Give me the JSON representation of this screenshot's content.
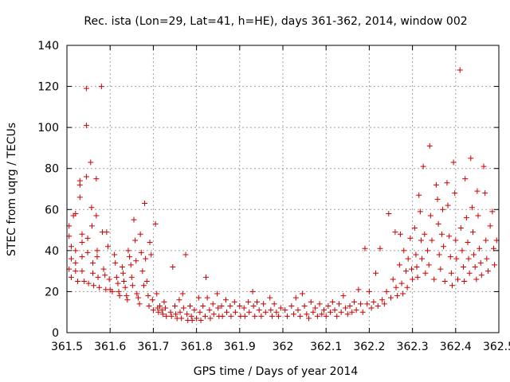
{
  "chart_data": {
    "type": "scatter",
    "title": "Rec. ista (Lon=29, Lat=41, h=HE), days 361-362, 2014, window 002",
    "xlabel": "GPS time / Days of year 2014",
    "ylabel": "STEC from uqrg / TECUs",
    "xlim": [
      361.5,
      362.5
    ],
    "ylim": [
      0,
      140
    ],
    "x_ticks": [
      {
        "value": 361.5,
        "label": "361.5"
      },
      {
        "value": 361.6,
        "label": "361.6"
      },
      {
        "value": 361.7,
        "label": "361.7"
      },
      {
        "value": 361.8,
        "label": "361.8"
      },
      {
        "value": 361.9,
        "label": "361.9"
      },
      {
        "value": 362.0,
        "label": "362"
      },
      {
        "value": 362.1,
        "label": "362.1"
      },
      {
        "value": 362.2,
        "label": "362.2"
      },
      {
        "value": 362.3,
        "label": "362.3"
      },
      {
        "value": 362.4,
        "label": "362.4"
      },
      {
        "value": 362.5,
        "label": "362.5"
      }
    ],
    "y_ticks": [
      {
        "value": 0,
        "label": "0"
      },
      {
        "value": 20,
        "label": "20"
      },
      {
        "value": 40,
        "label": "40"
      },
      {
        "value": 60,
        "label": "60"
      },
      {
        "value": 80,
        "label": "80"
      },
      {
        "value": 100,
        "label": "100"
      },
      {
        "value": 120,
        "label": "120"
      },
      {
        "value": 140,
        "label": "140"
      }
    ],
    "grid": true,
    "marker": "plus",
    "marker_color": "#cc0000",
    "series": [
      {
        "points": [
          [
            361.505,
            52
          ],
          [
            361.505,
            47
          ],
          [
            361.51,
            42
          ],
          [
            361.51,
            36
          ],
          [
            361.505,
            31
          ],
          [
            361.51,
            27
          ],
          [
            361.515,
            57
          ],
          [
            361.52,
            58
          ],
          [
            361.52,
            40
          ],
          [
            361.52,
            34
          ],
          [
            361.52,
            30
          ],
          [
            361.525,
            25
          ],
          [
            361.53,
            74
          ],
          [
            361.53,
            72
          ],
          [
            361.53,
            66
          ],
          [
            361.535,
            48
          ],
          [
            361.535,
            44
          ],
          [
            361.535,
            37
          ],
          [
            361.535,
            30
          ],
          [
            361.54,
            25
          ],
          [
            361.545,
            119
          ],
          [
            361.545,
            101
          ],
          [
            361.545,
            76
          ],
          [
            361.548,
            46
          ],
          [
            361.548,
            39
          ],
          [
            361.55,
            24
          ],
          [
            361.555,
            83
          ],
          [
            361.557,
            61
          ],
          [
            361.558,
            52
          ],
          [
            361.56,
            34
          ],
          [
            361.56,
            29
          ],
          [
            361.562,
            23
          ],
          [
            361.568,
            75
          ],
          [
            361.568,
            57
          ],
          [
            361.57,
            40
          ],
          [
            361.57,
            37
          ],
          [
            361.572,
            27
          ],
          [
            361.575,
            22
          ],
          [
            361.58,
            120
          ],
          [
            361.582,
            49
          ],
          [
            361.585,
            31
          ],
          [
            361.588,
            28
          ],
          [
            361.59,
            21
          ],
          [
            361.592,
            49
          ],
          [
            361.595,
            42
          ],
          [
            361.598,
            26
          ],
          [
            361.6,
            21
          ],
          [
            361.605,
            20
          ],
          [
            361.61,
            38
          ],
          [
            361.612,
            34
          ],
          [
            361.615,
            27
          ],
          [
            361.618,
            24
          ],
          [
            361.62,
            20
          ],
          [
            361.622,
            18
          ],
          [
            361.628,
            32
          ],
          [
            361.63,
            29
          ],
          [
            361.632,
            25
          ],
          [
            361.635,
            22
          ],
          [
            361.638,
            18
          ],
          [
            361.64,
            16
          ],
          [
            361.642,
            40
          ],
          [
            361.645,
            37
          ],
          [
            361.648,
            33
          ],
          [
            361.65,
            27
          ],
          [
            361.652,
            23
          ],
          [
            361.655,
            55
          ],
          [
            361.658,
            45
          ],
          [
            361.66,
            35
          ],
          [
            361.662,
            19
          ],
          [
            361.665,
            17
          ],
          [
            361.668,
            14
          ],
          [
            361.67,
            48
          ],
          [
            361.672,
            39
          ],
          [
            361.675,
            30
          ],
          [
            361.678,
            23
          ],
          [
            361.68,
            63
          ],
          [
            361.682,
            36
          ],
          [
            361.685,
            25
          ],
          [
            361.688,
            18
          ],
          [
            361.69,
            13
          ],
          [
            361.692,
            44
          ],
          [
            361.695,
            38
          ],
          [
            361.698,
            16
          ],
          [
            361.7,
            11
          ],
          [
            361.705,
            53
          ],
          [
            361.708,
            19
          ],
          [
            361.71,
            12
          ],
          [
            361.712,
            10
          ],
          [
            361.715,
            13
          ],
          [
            361.72,
            11
          ],
          [
            361.722,
            9
          ],
          [
            361.725,
            15
          ],
          [
            361.728,
            12
          ],
          [
            361.73,
            8
          ],
          [
            361.74,
            10
          ],
          [
            361.742,
            8
          ],
          [
            361.745,
            32
          ],
          [
            361.75,
            13
          ],
          [
            361.752,
            9
          ],
          [
            361.755,
            7
          ],
          [
            361.76,
            16
          ],
          [
            361.762,
            10
          ],
          [
            361.765,
            7
          ],
          [
            361.768,
            19
          ],
          [
            361.77,
            12
          ],
          [
            361.775,
            38
          ],
          [
            361.778,
            9
          ],
          [
            361.78,
            6
          ],
          [
            361.785,
            13
          ],
          [
            361.788,
            8
          ],
          [
            361.79,
            6
          ],
          [
            361.795,
            11
          ],
          [
            361.8,
            7
          ],
          [
            361.805,
            17
          ],
          [
            361.808,
            10
          ],
          [
            361.81,
            6
          ],
          [
            361.815,
            13
          ],
          [
            361.82,
            8
          ],
          [
            361.822,
            27
          ],
          [
            361.825,
            17
          ],
          [
            361.83,
            11
          ],
          [
            361.832,
            7
          ],
          [
            361.838,
            14
          ],
          [
            361.84,
            9
          ],
          [
            361.848,
            19
          ],
          [
            361.85,
            12
          ],
          [
            361.852,
            8
          ],
          [
            361.858,
            13
          ],
          [
            361.86,
            8
          ],
          [
            361.868,
            16
          ],
          [
            361.87,
            10
          ],
          [
            361.878,
            13
          ],
          [
            361.88,
            8
          ],
          [
            361.888,
            15
          ],
          [
            361.89,
            10
          ],
          [
            361.9,
            13
          ],
          [
            361.902,
            8
          ],
          [
            361.91,
            12
          ],
          [
            361.912,
            8
          ],
          [
            361.92,
            15
          ],
          [
            361.922,
            10
          ],
          [
            361.93,
            20
          ],
          [
            361.932,
            13
          ],
          [
            361.935,
            8
          ],
          [
            361.94,
            15
          ],
          [
            361.945,
            11
          ],
          [
            361.95,
            8
          ],
          [
            361.955,
            14
          ],
          [
            361.96,
            10
          ],
          [
            361.97,
            17
          ],
          [
            361.972,
            11
          ],
          [
            361.975,
            8
          ],
          [
            361.98,
            14
          ],
          [
            361.985,
            10
          ],
          [
            361.99,
            8
          ],
          [
            361.995,
            12
          ],
          [
            362.005,
            11
          ],
          [
            362.01,
            8
          ],
          [
            362.02,
            13
          ],
          [
            362.025,
            9
          ],
          [
            362.03,
            17
          ],
          [
            362.035,
            11
          ],
          [
            362.04,
            8
          ],
          [
            362.045,
            19
          ],
          [
            362.05,
            13
          ],
          [
            362.055,
            9
          ],
          [
            362.06,
            7
          ],
          [
            362.065,
            15
          ],
          [
            362.07,
            10
          ],
          [
            362.075,
            12
          ],
          [
            362.08,
            8
          ],
          [
            362.085,
            14
          ],
          [
            362.09,
            9
          ],
          [
            362.095,
            11
          ],
          [
            362.1,
            8
          ],
          [
            362.105,
            13
          ],
          [
            362.11,
            10
          ],
          [
            362.115,
            15
          ],
          [
            362.12,
            11
          ],
          [
            362.125,
            8
          ],
          [
            362.13,
            14
          ],
          [
            362.135,
            10
          ],
          [
            362.14,
            18
          ],
          [
            362.145,
            12
          ],
          [
            362.15,
            9
          ],
          [
            362.155,
            13
          ],
          [
            362.16,
            10
          ],
          [
            362.165,
            15
          ],
          [
            362.17,
            11
          ],
          [
            362.175,
            21
          ],
          [
            362.18,
            14
          ],
          [
            362.185,
            10
          ],
          [
            362.19,
            41
          ],
          [
            362.195,
            14
          ],
          [
            362.2,
            20
          ],
          [
            362.205,
            12
          ],
          [
            362.21,
            15
          ],
          [
            362.215,
            29
          ],
          [
            362.22,
            13
          ],
          [
            362.225,
            41
          ],
          [
            362.23,
            16
          ],
          [
            362.235,
            14
          ],
          [
            362.24,
            20
          ],
          [
            362.245,
            58
          ],
          [
            362.25,
            17
          ],
          [
            362.255,
            26
          ],
          [
            362.26,
            49
          ],
          [
            362.262,
            22
          ],
          [
            362.265,
            18
          ],
          [
            362.27,
            33
          ],
          [
            362.272,
            48
          ],
          [
            362.275,
            24
          ],
          [
            362.278,
            19
          ],
          [
            362.28,
            40
          ],
          [
            362.285,
            30
          ],
          [
            362.288,
            22
          ],
          [
            362.29,
            36
          ],
          [
            362.295,
            46
          ],
          [
            362.298,
            31
          ],
          [
            362.3,
            26
          ],
          [
            362.305,
            51
          ],
          [
            362.308,
            38
          ],
          [
            362.31,
            32
          ],
          [
            362.312,
            27
          ],
          [
            362.315,
            67
          ],
          [
            362.318,
            59
          ],
          [
            362.32,
            45
          ],
          [
            362.322,
            36
          ],
          [
            362.325,
            81
          ],
          [
            362.328,
            48
          ],
          [
            362.33,
            29
          ],
          [
            362.335,
            40
          ],
          [
            362.338,
            33
          ],
          [
            362.34,
            91
          ],
          [
            362.342,
            57
          ],
          [
            362.345,
            45
          ],
          [
            362.35,
            26
          ],
          [
            362.355,
            72
          ],
          [
            362.358,
            65
          ],
          [
            362.36,
            53
          ],
          [
            362.362,
            38
          ],
          [
            362.365,
            31
          ],
          [
            362.368,
            48
          ],
          [
            362.37,
            60
          ],
          [
            362.372,
            42
          ],
          [
            362.375,
            25
          ],
          [
            362.38,
            73
          ],
          [
            362.382,
            62
          ],
          [
            362.385,
            47
          ],
          [
            362.388,
            37
          ],
          [
            362.39,
            29
          ],
          [
            362.392,
            23
          ],
          [
            362.395,
            83
          ],
          [
            362.398,
            68
          ],
          [
            362.4,
            45
          ],
          [
            362.402,
            36
          ],
          [
            362.405,
            26
          ],
          [
            362.41,
            128
          ],
          [
            362.412,
            51
          ],
          [
            362.415,
            40
          ],
          [
            362.418,
            32
          ],
          [
            362.42,
            25
          ],
          [
            362.422,
            75
          ],
          [
            362.425,
            56
          ],
          [
            362.428,
            44
          ],
          [
            362.43,
            36
          ],
          [
            362.432,
            29
          ],
          [
            362.435,
            85
          ],
          [
            362.438,
            61
          ],
          [
            362.44,
            49
          ],
          [
            362.442,
            38
          ],
          [
            362.445,
            32
          ],
          [
            362.448,
            26
          ],
          [
            362.45,
            69
          ],
          [
            362.452,
            57
          ],
          [
            362.455,
            41
          ],
          [
            362.458,
            34
          ],
          [
            362.46,
            28
          ],
          [
            362.465,
            81
          ],
          [
            362.468,
            68
          ],
          [
            362.47,
            45
          ],
          [
            362.472,
            36
          ],
          [
            362.475,
            30
          ],
          [
            362.48,
            52
          ],
          [
            362.485,
            59
          ],
          [
            362.488,
            41
          ],
          [
            362.49,
            33
          ],
          [
            362.495,
            45
          ]
        ]
      }
    ]
  }
}
